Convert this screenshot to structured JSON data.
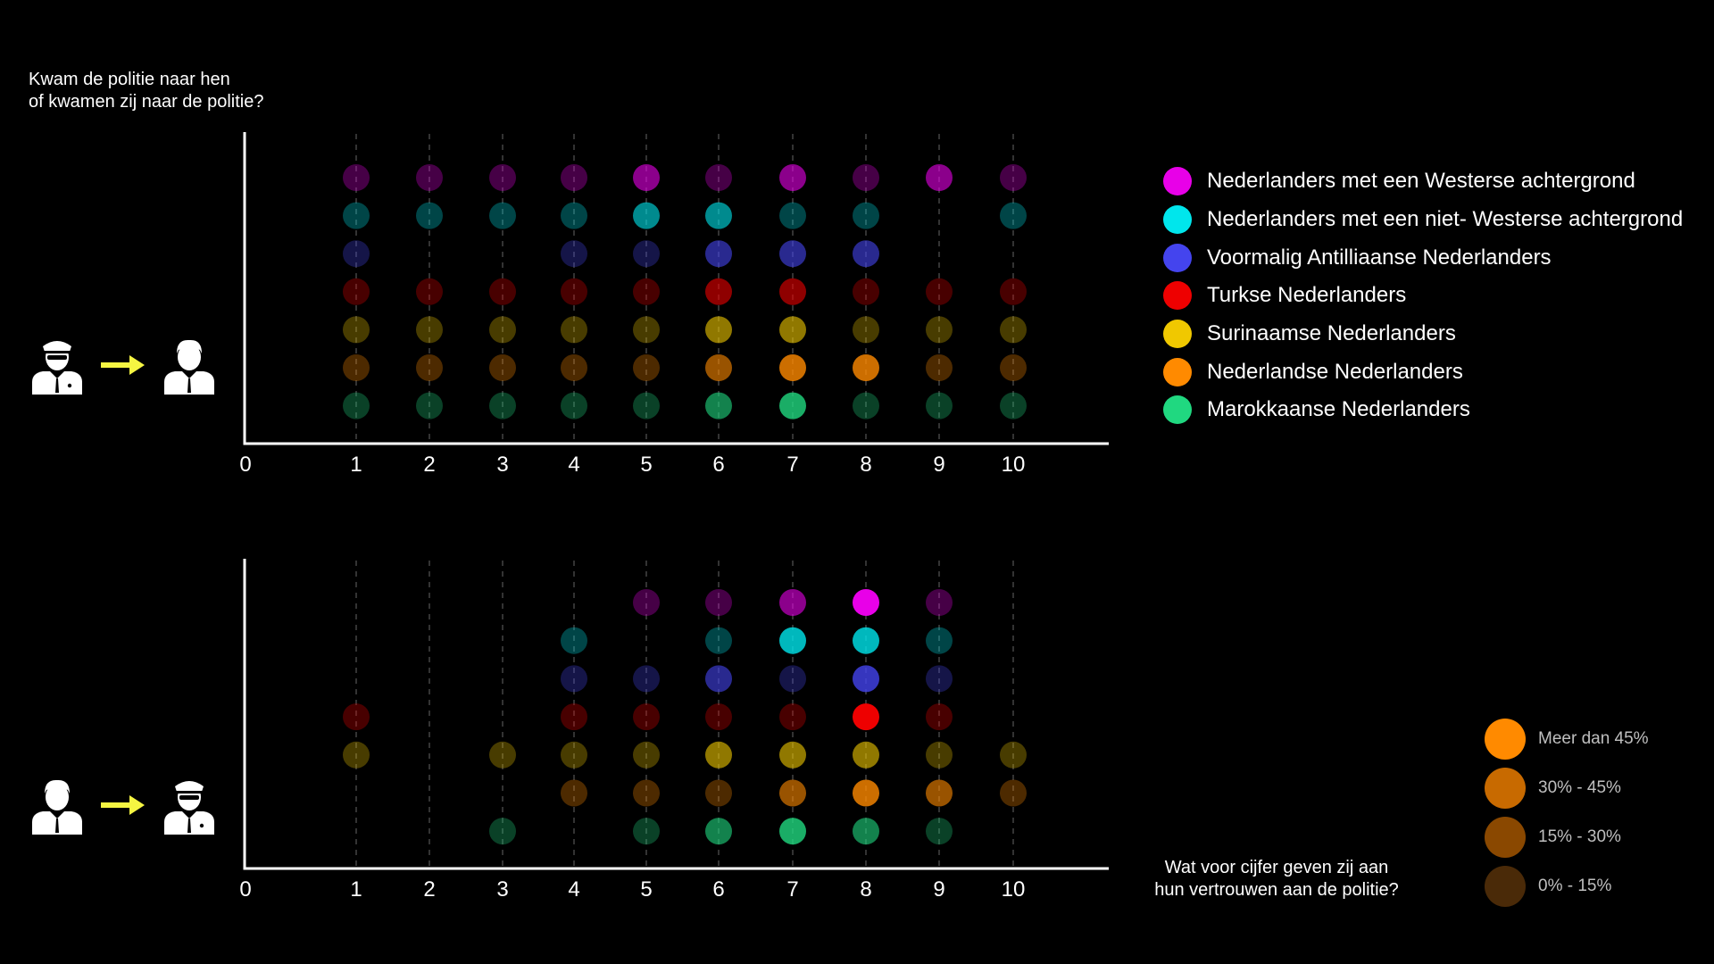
{
  "question_top": {
    "line1": "Kwam de politie naar hen",
    "line2": "of kwamen zij naar de politie?"
  },
  "question_bottom": {
    "line1": "Wat voor cijfer geven zij aan",
    "line2": "hun vertrouwen aan de politie?"
  },
  "icons": {
    "top": [
      "police-officer-icon",
      "arrow-right-icon",
      "citizen-icon"
    ],
    "bottom": [
      "citizen-icon",
      "arrow-right-icon",
      "police-officer-icon"
    ],
    "arrow_color": "#f5f542"
  },
  "legend": [
    {
      "name": "Nederlanders met een Westerse achtergrond",
      "color": "#e800e8"
    },
    {
      "name": "Nederlanders met een niet- Westerse achtergrond",
      "color": "#00e6ec"
    },
    {
      "name": "Voormalig Antilliaanse Nederlanders",
      "color": "#4444ee"
    },
    {
      "name": "Turkse Nederlanders",
      "color": "#ee0000"
    },
    {
      "name": "Surinaamse Nederlanders",
      "color": "#f0c800"
    },
    {
      "name": "Nederlandse Nederlanders",
      "color": "#ff8a00"
    },
    {
      "name": "Marokkaanse Nederlanders",
      "color": "#20d880"
    }
  ],
  "size_legend": [
    {
      "label": "Meer dan 45%",
      "color": "#ff8a00"
    },
    {
      "label": "30% - 45%",
      "color": "#c86a00"
    },
    {
      "label": "15% - 30%",
      "color": "#8a4800"
    },
    {
      "label": "0% - 15%",
      "color": "#4a2a08"
    }
  ],
  "chart_data": [
    {
      "type": "scatter",
      "x_ticks": [
        "0",
        "1",
        "2",
        "3",
        "4",
        "5",
        "6",
        "7",
        "8",
        "9",
        "10"
      ],
      "xlim": [
        0,
        10
      ],
      "grid": "vertical dashed at 1-10",
      "series": [
        {
          "color": "#e800e8",
          "levels": [
            1,
            1,
            1,
            1,
            2,
            1,
            2,
            1,
            2,
            1
          ]
        },
        {
          "color": "#00e6ec",
          "levels": [
            1,
            1,
            1,
            1,
            2,
            2,
            1,
            1,
            0,
            1
          ]
        },
        {
          "color": "#4444ee",
          "levels": [
            1,
            0,
            0,
            1,
            1,
            2,
            2,
            2,
            0,
            0
          ]
        },
        {
          "color": "#ee0000",
          "levels": [
            1,
            1,
            1,
            1,
            1,
            2,
            2,
            1,
            1,
            1
          ]
        },
        {
          "color": "#f0c800",
          "levels": [
            1,
            1,
            1,
            1,
            1,
            2,
            2,
            1,
            1,
            1
          ]
        },
        {
          "color": "#ff8a00",
          "levels": [
            1,
            1,
            1,
            1,
            1,
            2,
            3,
            3,
            1,
            1
          ]
        },
        {
          "color": "#20d880",
          "levels": [
            1,
            1,
            1,
            1,
            1,
            2,
            3,
            1,
            1,
            1
          ]
        }
      ]
    },
    {
      "type": "scatter",
      "x_ticks": [
        "0",
        "1",
        "2",
        "3",
        "4",
        "5",
        "6",
        "7",
        "8",
        "9",
        "10"
      ],
      "xlim": [
        0,
        10
      ],
      "grid": "vertical dashed at 1-10",
      "series": [
        {
          "color": "#e800e8",
          "levels": [
            0,
            0,
            0,
            0,
            1,
            1,
            2,
            4,
            1,
            0
          ]
        },
        {
          "color": "#00e6ec",
          "levels": [
            0,
            0,
            0,
            1,
            0,
            1,
            3,
            3,
            1,
            0
          ]
        },
        {
          "color": "#4444ee",
          "levels": [
            0,
            0,
            0,
            1,
            1,
            2,
            1,
            3,
            1,
            0
          ]
        },
        {
          "color": "#ee0000",
          "levels": [
            1,
            0,
            0,
            1,
            1,
            1,
            1,
            4,
            1,
            0
          ]
        },
        {
          "color": "#f0c800",
          "levels": [
            1,
            0,
            1,
            1,
            1,
            2,
            2,
            2,
            1,
            1
          ]
        },
        {
          "color": "#ff8a00",
          "levels": [
            0,
            0,
            0,
            1,
            1,
            1,
            2,
            3,
            2,
            1
          ]
        },
        {
          "color": "#20d880",
          "levels": [
            0,
            0,
            1,
            0,
            1,
            2,
            3,
            2,
            1,
            0
          ]
        }
      ]
    }
  ]
}
